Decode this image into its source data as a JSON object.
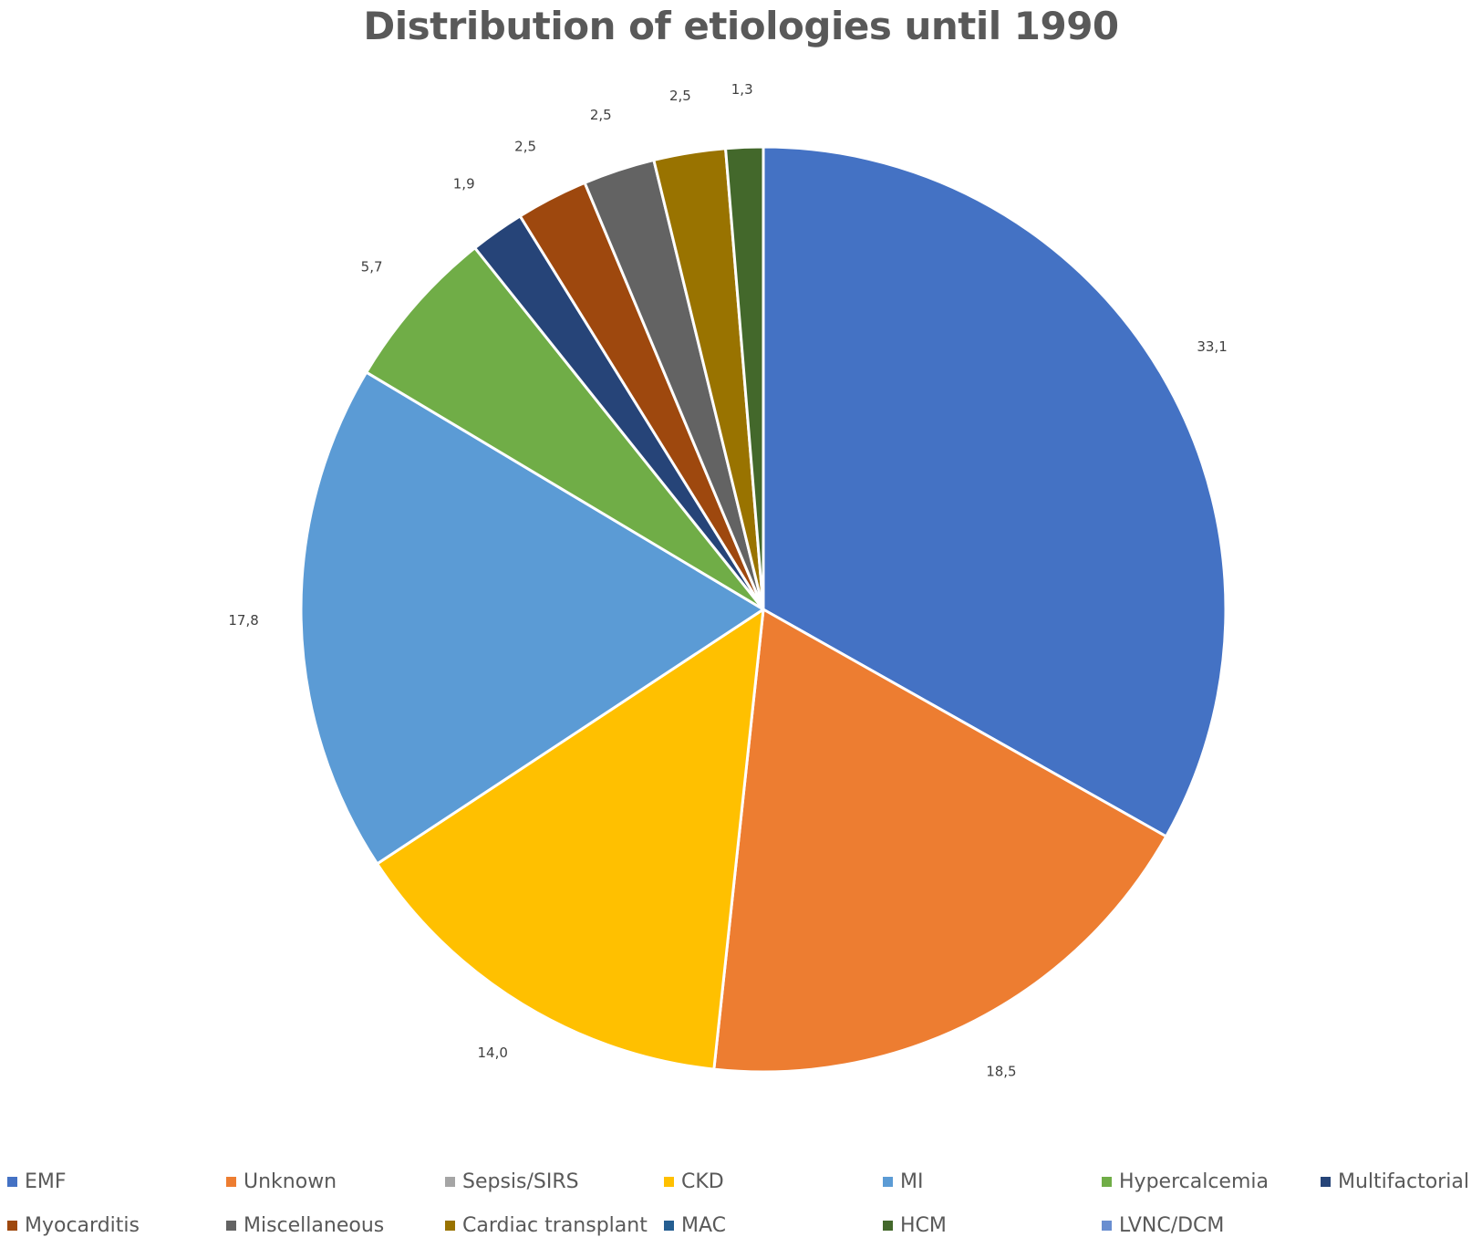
{
  "chart_data": {
    "type": "pie",
    "title": "Distribution of etiologies until 1990",
    "legend_position": "bottom",
    "categories": [
      "EMF",
      "Unknown",
      "Sepsis/SIRS",
      "CKD",
      "MI",
      "Hypercalcemia",
      "Multifactorial",
      "Myocarditis",
      "Miscellaneous",
      "Cardiac transplant",
      "MAC",
      "HCM",
      "LVNC/DCM"
    ],
    "values": [
      33.1,
      18.5,
      0,
      14.0,
      17.8,
      5.7,
      1.9,
      2.5,
      2.5,
      2.5,
      0,
      1.3,
      0
    ],
    "value_labels": [
      "33,1",
      "18,5",
      "",
      "14,0",
      "17,8",
      "5,7",
      "1,9",
      "2,5",
      "2,5",
      "2,5",
      "",
      "1,3",
      ""
    ],
    "colors": [
      "#4472C4",
      "#ED7D31",
      "#A5A5A5",
      "#FFC000",
      "#5B9BD5",
      "#70AD47",
      "#264478",
      "#9E480E",
      "#636363",
      "#997300",
      "#255E91",
      "#43682B",
      "#698ED0"
    ]
  }
}
